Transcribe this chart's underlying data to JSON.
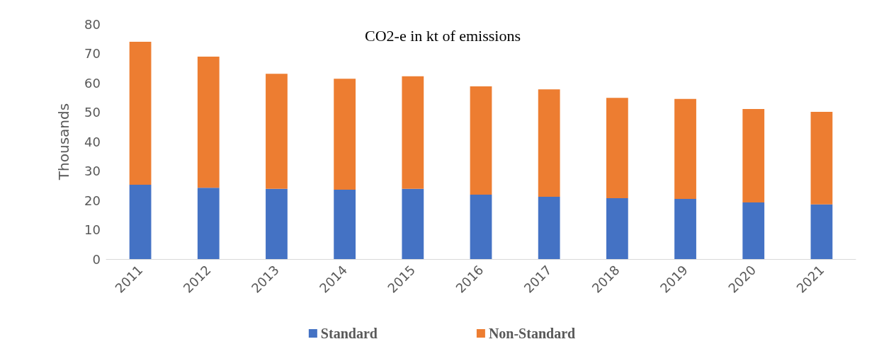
{
  "chart_data": {
    "type": "bar",
    "title": "CO2-e in kt of emissions",
    "ylabel": "Thousands",
    "stacked": true,
    "legend": "bottom",
    "grid": false,
    "categories": [
      "2011",
      "2012",
      "2013",
      "2014",
      "2015",
      "2016",
      "2017",
      "2018",
      "2019",
      "2020",
      "2021"
    ],
    "series": [
      {
        "name": "Standard",
        "color": "#4472c4",
        "values": [
          25.3,
          24.3,
          23.9,
          23.6,
          23.9,
          21.9,
          21.2,
          20.7,
          20.5,
          19.3,
          18.6
        ]
      },
      {
        "name": "Non-Standard",
        "color": "#ed7d31",
        "values": [
          48.7,
          44.6,
          39.2,
          37.8,
          38.3,
          36.9,
          36.6,
          34.2,
          34.0,
          31.8,
          31.5
        ]
      }
    ],
    "ylim": [
      0,
      80
    ],
    "yticks": [
      0,
      10,
      20,
      30,
      40,
      50,
      60,
      70,
      80
    ]
  }
}
